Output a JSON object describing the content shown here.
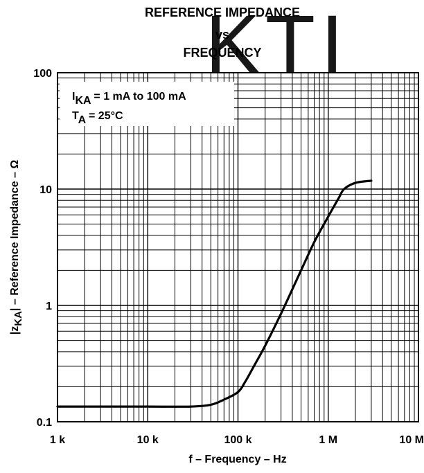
{
  "watermark": {
    "text": "KTI",
    "color": "#f4a0a8"
  },
  "chart_data": {
    "type": "line",
    "title": [
      "REFERENCE IMPEDANCE",
      "vs",
      "FREQUENCY"
    ],
    "xlabel": "f – Frequency – Hz",
    "ylabel": {
      "prefix": "|z",
      "sub": "KA",
      "suffix": "| – Reference Impedance – Ω"
    },
    "xscale": "log",
    "yscale": "log",
    "xlim": [
      1000,
      10000000
    ],
    "ylim": [
      0.1,
      100
    ],
    "x_ticks": [
      {
        "value": 1000,
        "label": "1 k"
      },
      {
        "value": 10000,
        "label": "10 k"
      },
      {
        "value": 100000,
        "label": "100 k"
      },
      {
        "value": 1000000,
        "label": "1 M"
      },
      {
        "value": 10000000,
        "label": "10 M"
      }
    ],
    "y_ticks": [
      {
        "value": 0.1,
        "label": "0.1"
      },
      {
        "value": 1,
        "label": "1"
      },
      {
        "value": 10,
        "label": "10"
      },
      {
        "value": 100,
        "label": "100"
      }
    ],
    "grid": true,
    "annotation": [
      {
        "main": "I",
        "sub": "KA",
        "rest": " = 1 mA to 100 mA"
      },
      {
        "main": "T",
        "sub": "A",
        "rest": " = 25°C"
      }
    ],
    "series": [
      {
        "color": "#000000",
        "x": [
          1000,
          10000,
          30000,
          50000,
          70000,
          100000,
          120000,
          150000,
          200000,
          300000,
          500000,
          700000,
          1000000,
          1300000,
          1500000,
          2000000,
          3000000
        ],
        "y": [
          0.135,
          0.135,
          0.135,
          0.14,
          0.155,
          0.18,
          0.22,
          0.3,
          0.45,
          0.85,
          2.0,
          3.5,
          5.8,
          8.3,
          10.0,
          11.3,
          11.8
        ]
      }
    ]
  }
}
